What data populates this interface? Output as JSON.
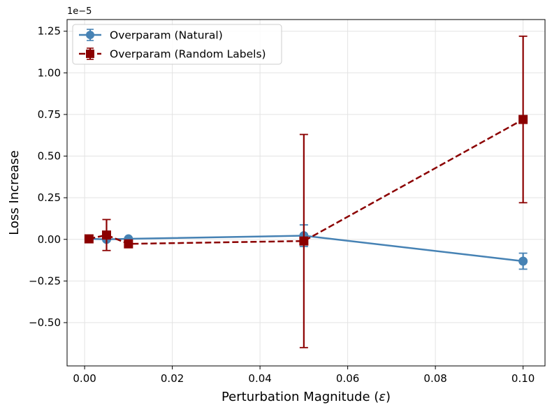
{
  "chart_data": {
    "type": "line",
    "xlabel": "Perturbation Magnitude (",
    "xlabel_symbol": "ε",
    "xlabel_close": ")",
    "ylabel": "Loss Increase",
    "y_offset_label": "1e−5",
    "xlim": [
      -0.004,
      0.105
    ],
    "ylim": [
      -0.76,
      1.32
    ],
    "xticks": [
      0.0,
      0.02,
      0.04,
      0.06,
      0.08,
      0.1
    ],
    "xtick_labels": [
      "0.00",
      "0.02",
      "0.04",
      "0.06",
      "0.08",
      "0.10"
    ],
    "yticks": [
      -0.5,
      -0.25,
      0.0,
      0.25,
      0.5,
      0.75,
      1.0,
      1.25
    ],
    "ytick_labels": [
      "−0.50",
      "−0.25",
      "0.00",
      "0.25",
      "0.50",
      "0.75",
      "1.00",
      "1.25"
    ],
    "grid": true,
    "legend_position": "top-left",
    "series": [
      {
        "name": "Overparam (Natural)",
        "color": "#4682b4",
        "linestyle": "solid",
        "marker": "circle",
        "x": [
          0.001,
          0.005,
          0.01,
          0.05,
          0.1
        ],
        "y": [
          0.003,
          0.0,
          0.003,
          0.022,
          -0.131
        ],
        "yerr": [
          0.005,
          0.01,
          0.005,
          0.065,
          0.048
        ]
      },
      {
        "name": "Overparam (Random Labels)",
        "color": "#8b0000",
        "linestyle": "dashed",
        "marker": "square",
        "x": [
          0.001,
          0.005,
          0.01,
          0.05,
          0.1
        ],
        "y": [
          0.003,
          0.026,
          -0.027,
          -0.01,
          0.72
        ],
        "yerr": [
          0.005,
          0.093,
          0.005,
          0.64,
          0.5
        ]
      }
    ]
  }
}
